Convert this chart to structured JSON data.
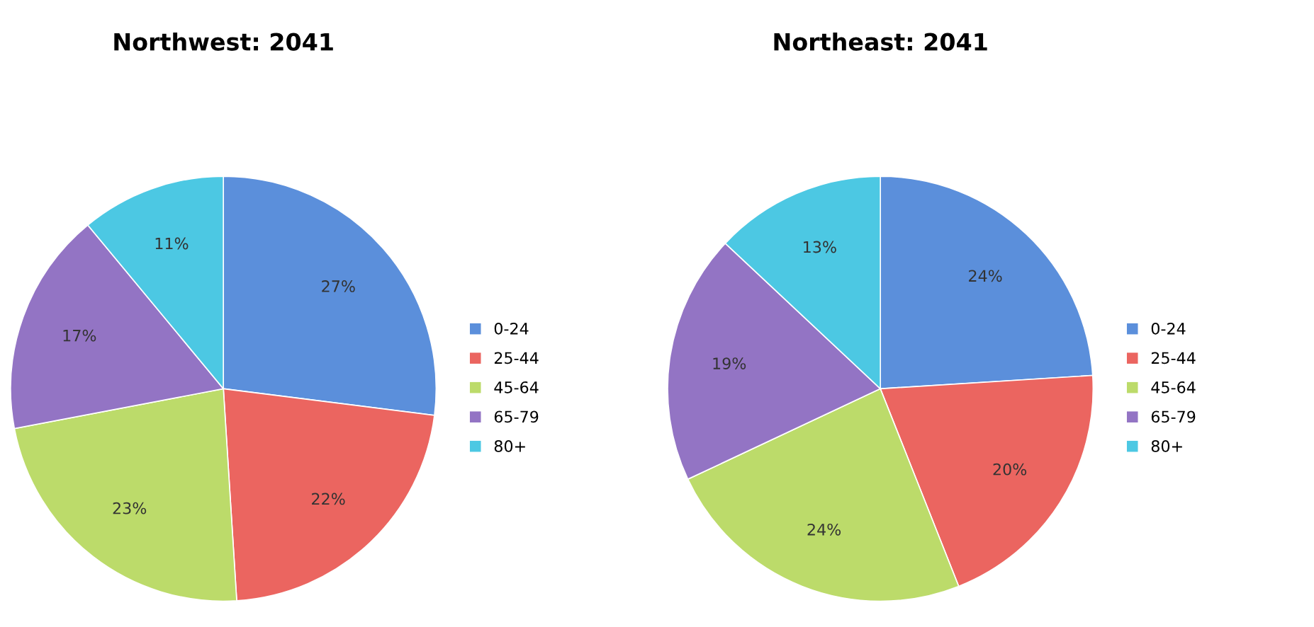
{
  "chart_data": [
    {
      "type": "pie",
      "title": "Northwest: 2041",
      "categories": [
        "0-24",
        "25-44",
        "45-64",
        "65-79",
        "80+"
      ],
      "values": [
        27,
        22,
        23,
        17,
        11
      ],
      "value_labels": [
        "27%",
        "22%",
        "23%",
        "17%",
        "11%"
      ],
      "colors": [
        "#5b8fdb",
        "#eb6560",
        "#bcdb6a",
        "#9374c4",
        "#4cc8e3"
      ],
      "legend": "right"
    },
    {
      "type": "pie",
      "title": "Northeast: 2041",
      "categories": [
        "0-24",
        "25-44",
        "45-64",
        "65-79",
        "80+"
      ],
      "values": [
        24,
        20,
        24,
        19,
        13
      ],
      "value_labels": [
        "24%",
        "20%",
        "24%",
        "19%",
        "13%"
      ],
      "colors": [
        "#5b8fdb",
        "#eb6560",
        "#bcdb6a",
        "#9374c4",
        "#4cc8e3"
      ],
      "legend": "right"
    }
  ]
}
